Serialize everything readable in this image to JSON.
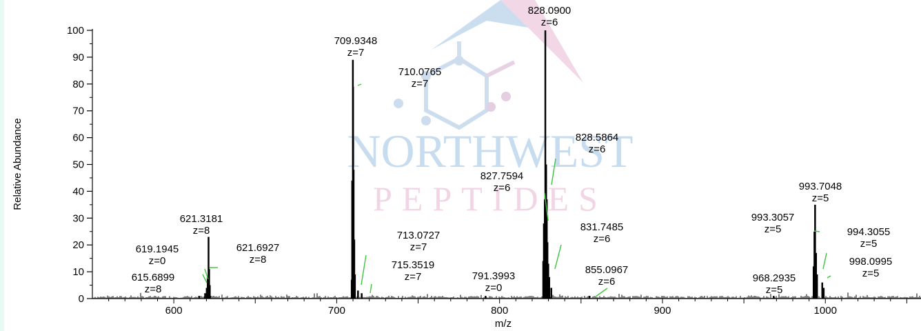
{
  "chart_data": {
    "type": "line",
    "title": "",
    "xlabel": "m/z",
    "ylabel": "Relative Abundance",
    "xlim": [
      550,
      1060
    ],
    "ylim": [
      0,
      100
    ],
    "x_ticks": [
      600,
      700,
      800,
      900,
      1000
    ],
    "y_ticks": [
      0,
      10,
      20,
      30,
      40,
      50,
      60,
      70,
      80,
      90,
      100
    ],
    "grid": false,
    "series": [
      {
        "peaks": [
          {
            "mz": 615.6899,
            "intensity": 1,
            "mass": "615.6899",
            "charge": "z=8"
          },
          {
            "mz": 619.1945,
            "intensity": 2,
            "mass": "619.1945",
            "charge": "z=0"
          },
          {
            "mz": 620.2,
            "intensity": 4
          },
          {
            "mz": 620.8,
            "intensity": 8
          },
          {
            "mz": 621.3181,
            "intensity": 23,
            "mass": "621.3181",
            "charge": "z=8"
          },
          {
            "mz": 621.6927,
            "intensity": 11,
            "mass": "621.6927",
            "charge": "z=8"
          },
          {
            "mz": 622.1,
            "intensity": 5
          },
          {
            "mz": 709.2,
            "intensity": 7
          },
          {
            "mz": 709.5,
            "intensity": 44
          },
          {
            "mz": 709.9348,
            "intensity": 89,
            "mass": "709.9348",
            "charge": "z=7"
          },
          {
            "mz": 710.0765,
            "intensity": 79,
            "mass": "710.0765",
            "charge": "z=7"
          },
          {
            "mz": 710.4,
            "intensity": 48
          },
          {
            "mz": 710.8,
            "intensity": 22
          },
          {
            "mz": 711.2,
            "intensity": 9
          },
          {
            "mz": 713.0727,
            "intensity": 3,
            "mass": "713.0727",
            "charge": "z=7"
          },
          {
            "mz": 715.3519,
            "intensity": 2,
            "mass": "715.3519",
            "charge": "z=7"
          },
          {
            "mz": 791.3993,
            "intensity": 1,
            "mass": "791.3993",
            "charge": "z=0"
          },
          {
            "mz": 826.8,
            "intensity": 14
          },
          {
            "mz": 827.2,
            "intensity": 28
          },
          {
            "mz": 827.7594,
            "intensity": 37,
            "mass": "827.7594",
            "charge": "z=6"
          },
          {
            "mz": 828.09,
            "intensity": 100,
            "mass": "828.0900",
            "charge": "z=6"
          },
          {
            "mz": 828.5864,
            "intensity": 50,
            "mass": "828.5864",
            "charge": "z=6"
          },
          {
            "mz": 829.0,
            "intensity": 37
          },
          {
            "mz": 829.4,
            "intensity": 21
          },
          {
            "mz": 829.9,
            "intensity": 13
          },
          {
            "mz": 830.5,
            "intensity": 8
          },
          {
            "mz": 831.7485,
            "intensity": 4,
            "mass": "831.7485",
            "charge": "z=6"
          },
          {
            "mz": 855.0967,
            "intensity": 1,
            "mass": "855.0967",
            "charge": "z=6"
          },
          {
            "mz": 968.2935,
            "intensity": 1,
            "mass": "968.2935",
            "charge": "z=5"
          },
          {
            "mz": 992.8,
            "intensity": 12
          },
          {
            "mz": 993.3057,
            "intensity": 25,
            "mass": "993.3057",
            "charge": "z=5"
          },
          {
            "mz": 993.7048,
            "intensity": 35,
            "mass": "993.7048",
            "charge": "z=5"
          },
          {
            "mz": 994.3055,
            "intensity": 17,
            "mass": "994.3055",
            "charge": "z=5"
          },
          {
            "mz": 994.9,
            "intensity": 9
          },
          {
            "mz": 998.0995,
            "intensity": 6,
            "mass": "998.0995",
            "charge": "z=5"
          },
          {
            "mz": 999.0,
            "intensity": 4
          }
        ]
      }
    ]
  },
  "watermark": {
    "line1": "NORTHWEST",
    "line2": "PEPTIDES",
    "color_blue": "#a9c9e6",
    "color_pink": "#ecc6dc"
  }
}
